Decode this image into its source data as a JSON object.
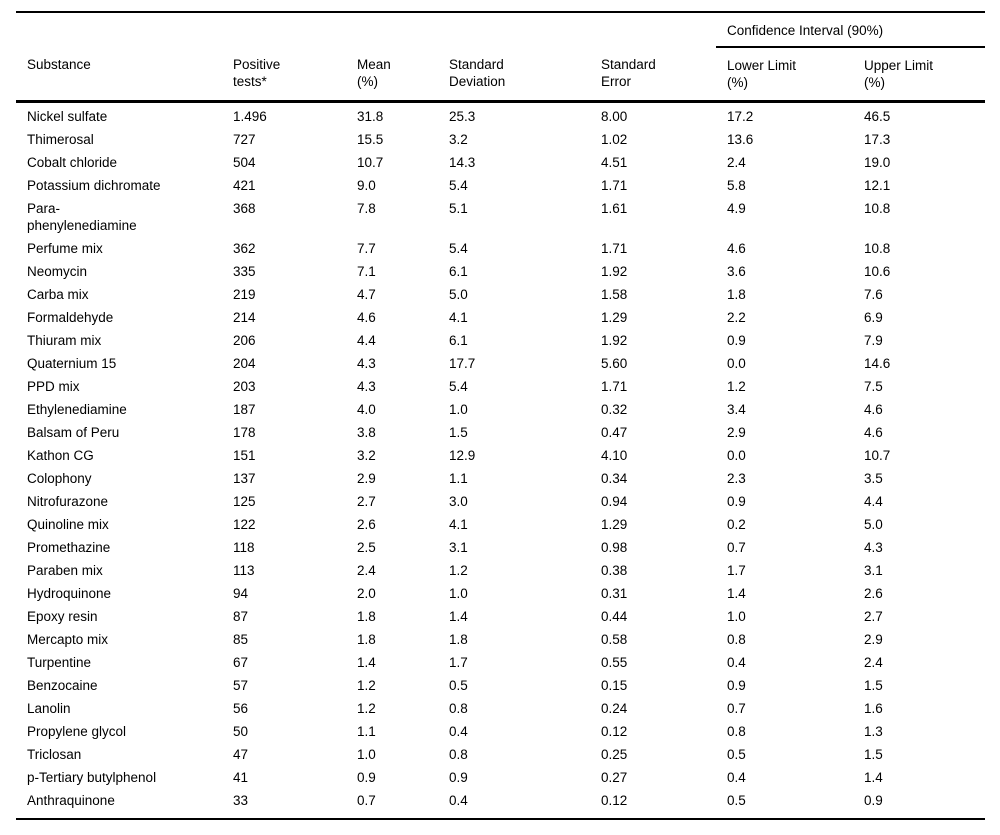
{
  "page": {
    "background": "#ffffff",
    "text_color": "#000000",
    "rule_color": "#000000"
  },
  "table": {
    "ci_group_header": "Confidence Interval (90%)",
    "columns": [
      "Substance",
      "Positive\ntests*",
      "Mean\n(%)",
      "Standard\nDeviation",
      "Standard\nError",
      "Lower Limit\n(%)",
      "Upper Limit\n(%)"
    ],
    "rows": [
      [
        "Nickel sulfate",
        "1.496",
        "31.8",
        "25.3",
        "8.00",
        "17.2",
        "46.5"
      ],
      [
        "Thimerosal",
        "727",
        "15.5",
        "3.2",
        "1.02",
        "13.6",
        "17.3"
      ],
      [
        "Cobalt chloride",
        "504",
        "10.7",
        "14.3",
        "4.51",
        "2.4",
        "19.0"
      ],
      [
        "Potassium dichromate",
        "421",
        "9.0",
        "5.4",
        "1.71",
        "5.8",
        "12.1"
      ],
      [
        "Para-\nphenylenediamine",
        "368",
        "7.8",
        "5.1",
        "1.61",
        "4.9",
        "10.8"
      ],
      [
        "Perfume mix",
        "362",
        "7.7",
        "5.4",
        "1.71",
        "4.6",
        "10.8"
      ],
      [
        "Neomycin",
        "335",
        "7.1",
        "6.1",
        "1.92",
        "3.6",
        "10.6"
      ],
      [
        "Carba mix",
        "219",
        "4.7",
        "5.0",
        "1.58",
        "1.8",
        "7.6"
      ],
      [
        "Formaldehyde",
        "214",
        "4.6",
        "4.1",
        "1.29",
        "2.2",
        "6.9"
      ],
      [
        "Thiuram mix",
        "206",
        "4.4",
        "6.1",
        "1.92",
        "0.9",
        "7.9"
      ],
      [
        "Quaternium 15",
        "204",
        "4.3",
        "17.7",
        "5.60",
        "0.0",
        "14.6"
      ],
      [
        "PPD mix",
        "203",
        "4.3",
        "5.4",
        "1.71",
        "1.2",
        "7.5"
      ],
      [
        "Ethylenediamine",
        "187",
        "4.0",
        "1.0",
        "0.32",
        "3.4",
        "4.6"
      ],
      [
        "Balsam of Peru",
        "178",
        "3.8",
        "1.5",
        "0.47",
        "2.9",
        "4.6"
      ],
      [
        "Kathon CG",
        "151",
        "3.2",
        "12.9",
        "4.10",
        "0.0",
        "10.7"
      ],
      [
        "Colophony",
        "137",
        "2.9",
        "1.1",
        "0.34",
        "2.3",
        "3.5"
      ],
      [
        "Nitrofurazone",
        "125",
        "2.7",
        "3.0",
        "0.94",
        "0.9",
        "4.4"
      ],
      [
        "Quinoline mix",
        "122",
        "2.6",
        "4.1",
        "1.29",
        "0.2",
        "5.0"
      ],
      [
        "Promethazine",
        "118",
        "2.5",
        "3.1",
        "0.98",
        "0.7",
        "4.3"
      ],
      [
        "Paraben mix",
        "113",
        "2.4",
        "1.2",
        "0.38",
        "1.7",
        "3.1"
      ],
      [
        "Hydroquinone",
        "94",
        "2.0",
        "1.0",
        "0.31",
        "1.4",
        "2.6"
      ],
      [
        "Epoxy resin",
        "87",
        "1.8",
        "1.4",
        "0.44",
        "1.0",
        "2.7"
      ],
      [
        "Mercapto mix",
        "85",
        "1.8",
        "1.8",
        "0.58",
        "0.8",
        "2.9"
      ],
      [
        "Turpentine",
        "67",
        "1.4",
        "1.7",
        "0.55",
        "0.4",
        "2.4"
      ],
      [
        "Benzocaine",
        "57",
        "1.2",
        "0.5",
        "0.15",
        "0.9",
        "1.5"
      ],
      [
        "Lanolin",
        "56",
        "1.2",
        "0.8",
        "0.24",
        "0.7",
        "1.6"
      ],
      [
        "Propylene glycol",
        "50",
        "1.1",
        "0.4",
        "0.12",
        "0.8",
        "1.3"
      ],
      [
        "Triclosan",
        "47",
        "1.0",
        "0.8",
        "0.25",
        "0.5",
        "1.5"
      ],
      [
        "p-Tertiary butylphenol",
        "41",
        "0.9",
        "0.9",
        "0.27",
        "0.4",
        "1.4"
      ],
      [
        "Anthraquinone",
        "33",
        "0.7",
        "0.4",
        "0.12",
        "0.5",
        "0.9"
      ]
    ]
  }
}
